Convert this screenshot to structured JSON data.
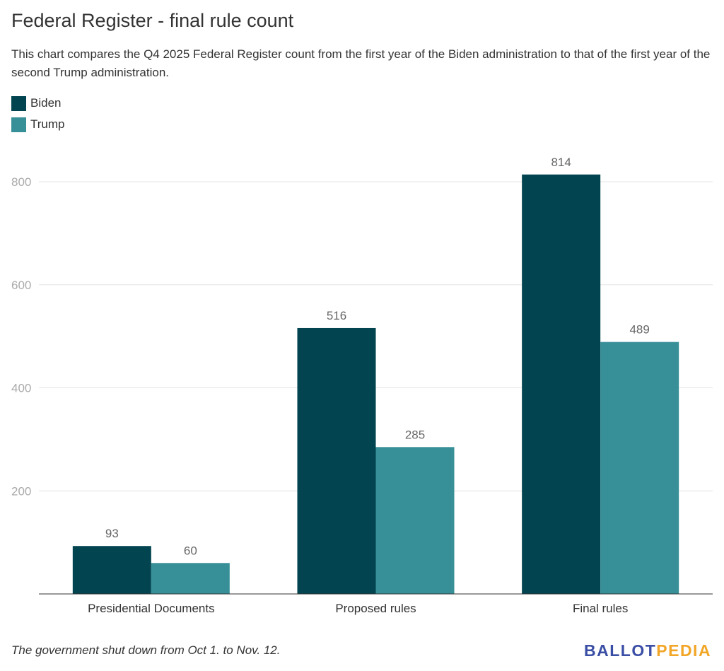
{
  "chart_data": {
    "type": "bar",
    "title": "Federal Register - final rule count",
    "subtitle": "This chart compares the Q4 2025 Federal Register count from the first year of the Biden administration to that of the first year of the second Trump administration.",
    "categories": [
      "Presidential Documents",
      "Proposed rules",
      "Final rules"
    ],
    "series": [
      {
        "name": "Biden",
        "color": "#02444f",
        "values": [
          93,
          516,
          814
        ]
      },
      {
        "name": "Trump",
        "color": "#378f98",
        "values": [
          60,
          285,
          489
        ]
      }
    ],
    "yticks": [
      200,
      400,
      600,
      800
    ],
    "ylim": [
      0,
      800
    ],
    "grid": true,
    "legend": "top-left",
    "xlabel": "",
    "ylabel": ""
  },
  "footnote": "The government shut down from Oct 1. to Nov. 12.",
  "logo": {
    "part1": "BALLOT",
    "part2": "PEDIA",
    "color1": "#3a4ea5",
    "color2": "#f2a627"
  }
}
